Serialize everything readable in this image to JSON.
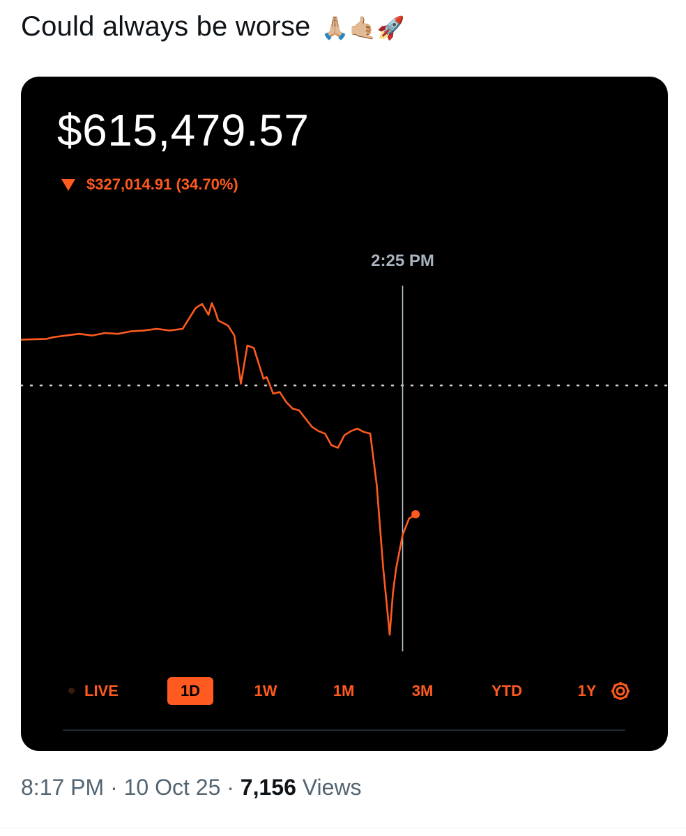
{
  "tweet": {
    "text": "Could always be worse",
    "emojis": "🙏🏼🤙🏼🚀"
  },
  "card": {
    "balance": "$615,479.57",
    "change": "$327,014.91 (34.70%)",
    "change_direction": "down",
    "crosshair_time": "2:25 PM",
    "tabs": {
      "live": "LIVE",
      "d1": "1D",
      "w1": "1W",
      "m1": "1M",
      "m3": "3M",
      "ytd": "YTD",
      "y1": "1Y"
    },
    "active_tab": "1D",
    "settings_icon": "gear-icon"
  },
  "colors": {
    "accent": "#ff5a1f",
    "card_bg": "#000000",
    "crosshair": "#b8c2cc",
    "baseline_dots": "#d0d0d0"
  },
  "chart_data": {
    "type": "line",
    "note_x": "x = fraction of the trading day elapsed, 0 = open, 1 = close",
    "x": [
      0.0,
      0.04,
      0.05,
      0.07,
      0.09,
      0.11,
      0.13,
      0.15,
      0.17,
      0.19,
      0.21,
      0.23,
      0.25,
      0.27,
      0.28,
      0.29,
      0.295,
      0.3,
      0.305,
      0.31,
      0.32,
      0.33,
      0.34,
      0.35,
      0.36,
      0.37,
      0.375,
      0.38,
      0.39,
      0.4,
      0.41,
      0.42,
      0.43,
      0.44,
      0.45,
      0.46,
      0.47,
      0.48,
      0.49,
      0.5,
      0.51,
      0.52,
      0.53,
      0.54,
      0.55,
      0.56,
      0.57,
      0.575,
      0.58,
      0.585,
      0.59,
      0.6,
      0.605,
      0.61
    ],
    "y": [
      0.55,
      0.56,
      0.58,
      0.6,
      0.62,
      0.6,
      0.63,
      0.62,
      0.65,
      0.66,
      0.68,
      0.66,
      0.68,
      0.93,
      0.98,
      0.85,
      0.99,
      0.9,
      0.78,
      0.76,
      0.72,
      0.6,
      0.02,
      0.48,
      0.45,
      0.2,
      0.08,
      0.1,
      -0.1,
      -0.08,
      -0.2,
      -0.28,
      -0.3,
      -0.4,
      -0.5,
      -0.55,
      -0.58,
      -0.72,
      -0.75,
      -0.6,
      -0.55,
      -0.52,
      -0.56,
      -0.58,
      -1.2,
      -2.2,
      -3.0,
      -2.5,
      -2.2,
      -2.0,
      -1.8,
      -1.6,
      -1.58,
      -1.55
    ],
    "baseline": 0.0,
    "crosshair_x": 0.59,
    "xlim": [
      0,
      1
    ],
    "ylim": [
      -3.2,
      1.2
    ]
  }
}
